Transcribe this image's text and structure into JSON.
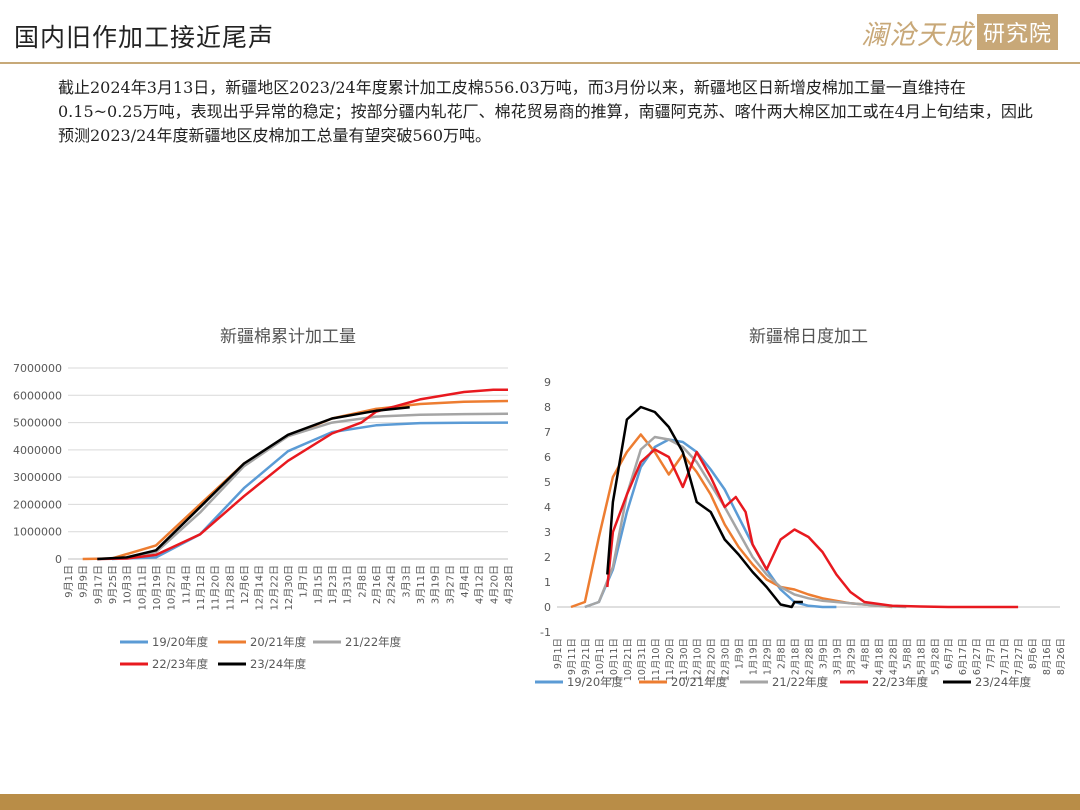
{
  "header": {
    "title": "国内旧作加工接近尾声",
    "logo_text": "澜沧天成",
    "logo_box": "研究院"
  },
  "body": {
    "paragraph": "截止2024年3月13日，新疆地区2023/24年度累计加工皮棉556.03万吨，而3月份以来，新疆地区日新增皮棉加工量一直维持在0.15~0.25万吨，表现出乎异常的稳定；按部分疆内轧花厂、棉花贸易商的推算，南疆阿克苏、喀什两大棉区加工或在4月上旬结束，因此预测2023/24年度新疆地区皮棉加工总量有望突破560万吨。"
  },
  "colors": {
    "s1920": "#5b9bd5",
    "s2021": "#ed7d31",
    "s2122": "#a5a5a5",
    "s2223": "#e8191f",
    "s2324": "#000000",
    "accent": "#c7a978"
  },
  "chart_data": [
    {
      "type": "line",
      "title": "新疆棉累计加工量",
      "ylim": [
        0,
        7000000
      ],
      "y_ticks": [
        "7000000",
        "6000000",
        "5000000",
        "4000000",
        "3000000",
        "2000000",
        "1000000",
        "0"
      ],
      "x_ticks": [
        "9月1日",
        "9月9日",
        "9月17日",
        "9月25日",
        "10月3日",
        "10月11日",
        "10月19日",
        "10月27日",
        "11月4日",
        "11月12日",
        "11月20日",
        "11月28日",
        "12月6日",
        "12月14日",
        "12月22日",
        "12月30日",
        "1月7日",
        "1月15日",
        "1月23日",
        "1月31日",
        "2月8日",
        "2月16日",
        "2月24日",
        "3月3日",
        "3月11日",
        "3月19日",
        "3月27日",
        "4月4日",
        "4月12日",
        "4月20日",
        "4月28日"
      ],
      "grid": true,
      "legend_position": "bottom",
      "series": [
        {
          "name": "19/20年度",
          "color_key": "s1920",
          "x": [
            3,
            6,
            9,
            12,
            15,
            18,
            21,
            24,
            27,
            30
          ],
          "y": [
            0,
            60000,
            900000,
            2600000,
            3950000,
            4650000,
            4900000,
            4980000,
            4990000,
            5000000
          ]
        },
        {
          "name": "20/21年度",
          "color_key": "s2021",
          "x": [
            1,
            3,
            6,
            9,
            12,
            15,
            18,
            21,
            24,
            27,
            30
          ],
          "y": [
            0,
            20000,
            500000,
            2000000,
            3500000,
            4500000,
            5150000,
            5500000,
            5680000,
            5760000,
            5790000
          ]
        },
        {
          "name": "21/22年度",
          "color_key": "s2122",
          "x": [
            2,
            4,
            6,
            9,
            12,
            15,
            18,
            21,
            24,
            27,
            30
          ],
          "y": [
            0,
            30000,
            250000,
            1700000,
            3400000,
            4500000,
            5000000,
            5220000,
            5290000,
            5310000,
            5320000
          ]
        },
        {
          "name": "22/23年度",
          "color_key": "s2223",
          "x": [
            2,
            4,
            6,
            9,
            12,
            15,
            18,
            20,
            21,
            24,
            27,
            29,
            30
          ],
          "y": [
            0,
            20000,
            150000,
            900000,
            2300000,
            3600000,
            4600000,
            5000000,
            5400000,
            5850000,
            6120000,
            6200000,
            6200000
          ]
        },
        {
          "name": "23/24年度",
          "color_key": "s2324",
          "x": [
            2,
            4,
            6,
            9,
            12,
            15,
            18,
            21,
            23.3
          ],
          "y": [
            0,
            60000,
            320000,
            1900000,
            3500000,
            4550000,
            5150000,
            5430000,
            5560300
          ]
        }
      ]
    },
    {
      "type": "line",
      "title": "新疆棉日度加工",
      "ylim": [
        -1,
        9
      ],
      "y_ticks": [
        "9",
        "8",
        "7",
        "6",
        "5",
        "4",
        "3",
        "2",
        "1",
        "0",
        "-1"
      ],
      "x_ticks": [
        "9月1日",
        "9月11日",
        "9月21日",
        "10月1日",
        "10月11日",
        "10月21日",
        "10月31日",
        "11月10日",
        "11月20日",
        "11月30日",
        "12月10日",
        "12月20日",
        "12月30日",
        "1月9日",
        "1月19日",
        "1月29日",
        "2月8日",
        "2月18日",
        "2月28日",
        "3月9日",
        "3月19日",
        "3月29日",
        "4月8日",
        "4月18日",
        "4月28日",
        "5月8日",
        "5月18日",
        "5月28日",
        "6月7日",
        "6月17日",
        "6月27日",
        "7月7日",
        "7月17日",
        "7月27日",
        "8月6日",
        "8月16日",
        "8月26日"
      ],
      "grid": false,
      "legend_position": "bottom",
      "series": [
        {
          "name": "19/20年度",
          "color_key": "s1920",
          "x": [
            2,
            3,
            4,
            5,
            6,
            7,
            8,
            9,
            10,
            11,
            12,
            13,
            14,
            15,
            16,
            17,
            18,
            19,
            20
          ],
          "y": [
            0,
            0.2,
            1.5,
            3.8,
            5.6,
            6.4,
            6.7,
            6.6,
            6.2,
            5.5,
            4.7,
            3.6,
            2.5,
            1.5,
            0.7,
            0.2,
            0.05,
            0,
            0
          ]
        },
        {
          "name": "20/21年度",
          "color_key": "s2021",
          "x": [
            1,
            2,
            3,
            4,
            5,
            6,
            7,
            8,
            9,
            10,
            11,
            12,
            13,
            14,
            15,
            16,
            17,
            18,
            19,
            20,
            21,
            22,
            23,
            24
          ],
          "y": [
            0,
            0.2,
            2.8,
            5.2,
            6.2,
            6.9,
            6.2,
            5.3,
            6.1,
            5.4,
            4.5,
            3.3,
            2.4,
            1.7,
            1.1,
            0.8,
            0.7,
            0.5,
            0.35,
            0.25,
            0.15,
            0.1,
            0.05,
            0
          ]
        },
        {
          "name": "21/22年度",
          "color_key": "s2122",
          "x": [
            2,
            3,
            4,
            5,
            6,
            7,
            8,
            9,
            10,
            11,
            12,
            13,
            14,
            15,
            16,
            17,
            18,
            19,
            20,
            21,
            22,
            23,
            24,
            25
          ],
          "y": [
            0,
            0.2,
            1.6,
            4.5,
            6.3,
            6.8,
            6.7,
            6.4,
            5.8,
            4.9,
            4.0,
            3.0,
            2.0,
            1.3,
            0.8,
            0.5,
            0.35,
            0.25,
            0.2,
            0.15,
            0.1,
            0.05,
            0.02,
            0
          ]
        },
        {
          "name": "22/23年度",
          "color_key": "s2223",
          "x": [
            3.6,
            4,
            5,
            6,
            7,
            8,
            9,
            10,
            11,
            12,
            12.8,
            13.5,
            14,
            15,
            16,
            17,
            18,
            19,
            20,
            21,
            22,
            24,
            26,
            28,
            30,
            32,
            33
          ],
          "y": [
            0.8,
            3,
            4.5,
            5.8,
            6.3,
            6,
            4.8,
            6.2,
            5.2,
            4,
            4.4,
            3.8,
            2.5,
            1.5,
            2.7,
            3.1,
            2.8,
            2.2,
            1.3,
            0.6,
            0.2,
            0.05,
            0.02,
            0,
            0,
            0,
            0
          ]
        },
        {
          "name": "23/24年度",
          "color_key": "s2324",
          "x": [
            3.6,
            4,
            5,
            6,
            7,
            8,
            9,
            10,
            11,
            12,
            13,
            14,
            15,
            16,
            16.8,
            17,
            17.6
          ],
          "y": [
            1.3,
            4.2,
            7.5,
            8,
            7.8,
            7.2,
            6.2,
            4.2,
            3.8,
            2.7,
            2.1,
            1.4,
            0.8,
            0.1,
            0,
            0.2,
            0.2
          ]
        }
      ]
    }
  ]
}
